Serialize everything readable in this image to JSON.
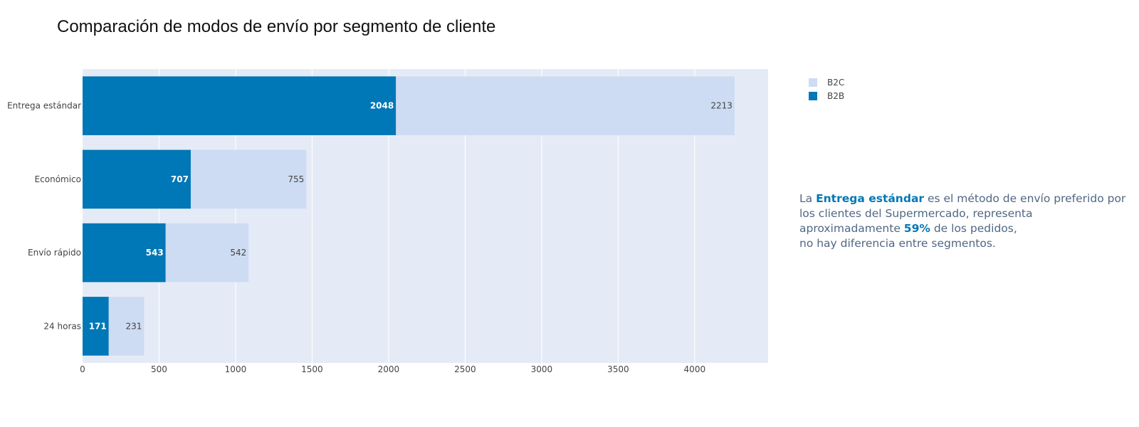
{
  "chart_data": {
    "type": "bar",
    "orientation": "horizontal",
    "barmode": "stack",
    "title": "Comparación de modos de envío por segmento de cliente",
    "categories": [
      "Entrega estándar",
      "Económico",
      "Envío rápido",
      "24 horas"
    ],
    "series": [
      {
        "name": "B2B",
        "values": [
          2048,
          707,
          543,
          171
        ],
        "color": "#0077b6"
      },
      {
        "name": "B2C",
        "values": [
          2213,
          755,
          542,
          231
        ],
        "color": "#cddcf2"
      }
    ],
    "xlim": [
      0,
      4480
    ],
    "xticks": [
      0,
      500,
      1000,
      1500,
      2000,
      2500,
      3000,
      3500,
      4000
    ],
    "legend_order": [
      "B2C",
      "B2B"
    ],
    "legend_placement": "top-right",
    "grid": true,
    "plot_bg": "#e5ebf6",
    "annotation": {
      "p1": "La ",
      "highlight1": "Entrega estándar",
      "p2": " es el método de envío preferido por los clientes del Supermercado, representa aproximadamente ",
      "highlight2": "59%",
      "p3": " de los pedidos,",
      "p4": "no hay diferencia entre segmentos."
    }
  }
}
